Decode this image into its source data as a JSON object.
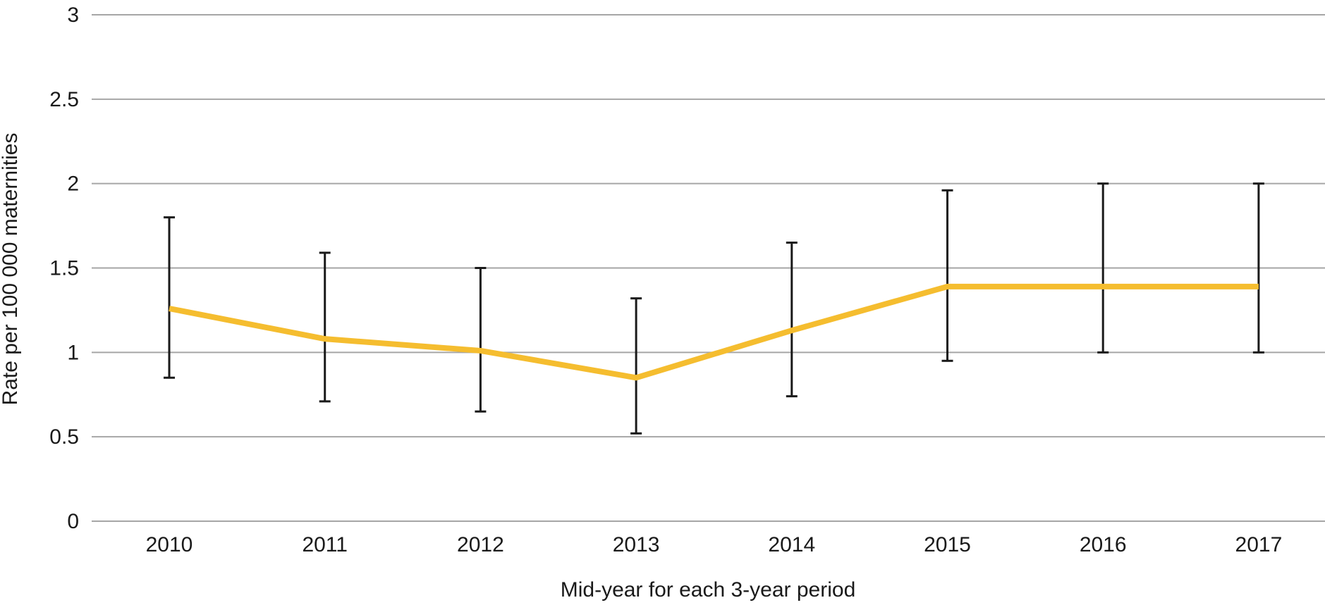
{
  "chart_data": {
    "type": "line",
    "title": "",
    "xlabel": "Mid-year for each 3-year period",
    "ylabel": "Rate per 100 000 maternities",
    "categories": [
      "2010",
      "2011",
      "2012",
      "2013",
      "2014",
      "2015",
      "2016",
      "2017"
    ],
    "series": [
      {
        "name": "Rate",
        "values": [
          1.26,
          1.08,
          1.01,
          0.85,
          1.13,
          1.39,
          1.39,
          1.39
        ],
        "ci_lower": [
          0.85,
          0.71,
          0.65,
          0.52,
          0.74,
          0.95,
          1.0,
          1.0
        ],
        "ci_upper": [
          1.8,
          1.59,
          1.5,
          1.32,
          1.65,
          1.96,
          2.0,
          2.0
        ],
        "color": "#f5bd2f"
      }
    ],
    "ylim": [
      0,
      3
    ],
    "yticks": [
      "0",
      "0.5",
      "1",
      "1.5",
      "2",
      "2.5",
      "3"
    ],
    "grid": true,
    "colors": {
      "grid": "#a6a6a6",
      "error_bar": "#1a1a1a",
      "text": "#1a1a1a"
    }
  }
}
